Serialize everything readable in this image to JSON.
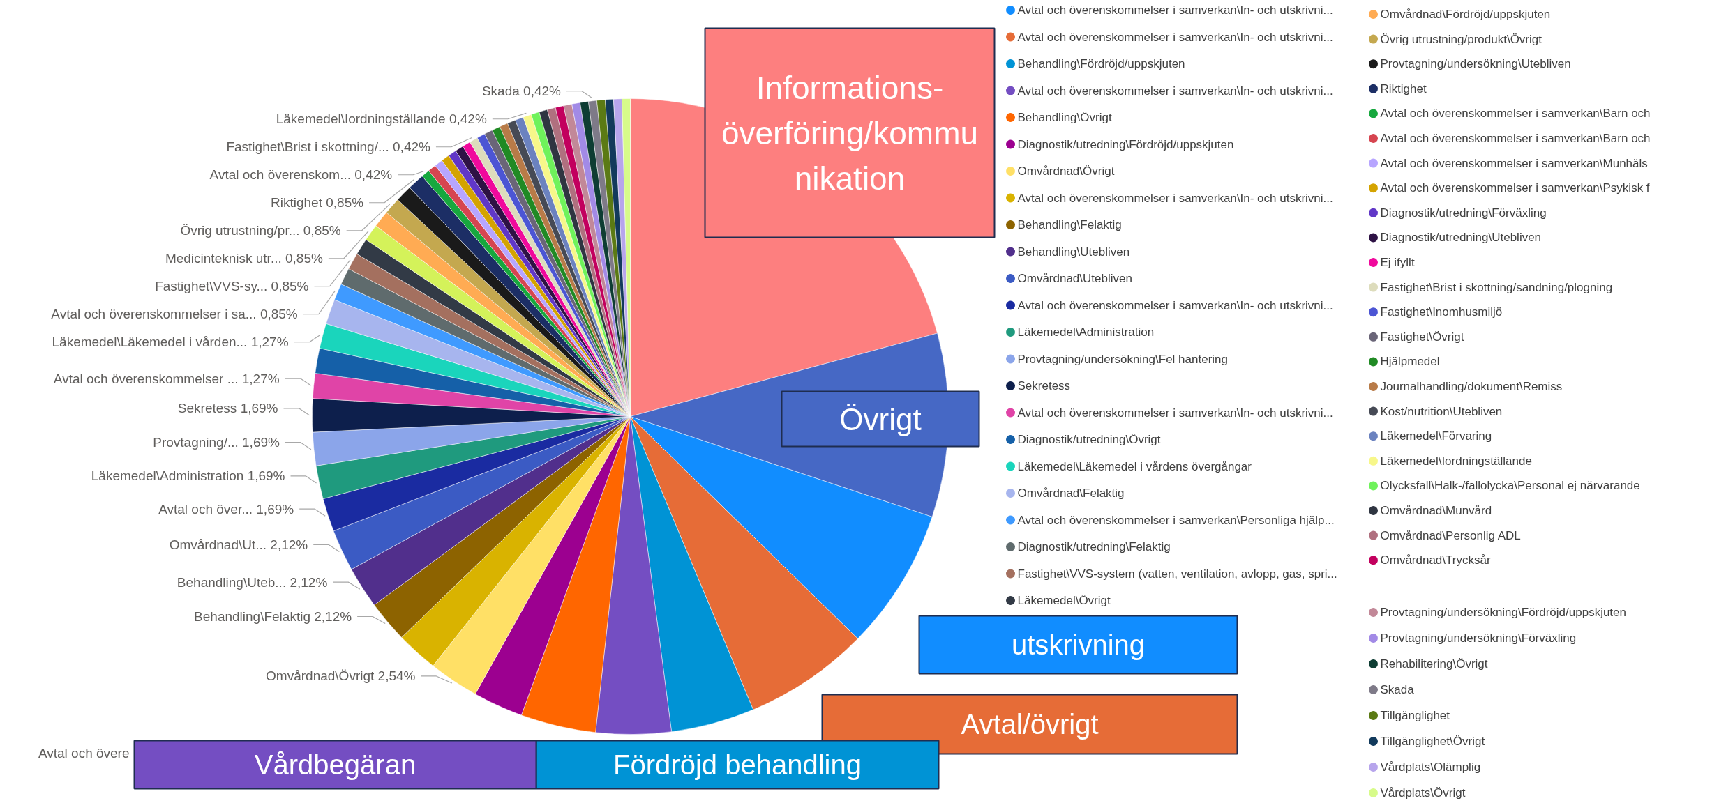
{
  "chart_data": {
    "type": "pie",
    "legend": "right",
    "categories": [
      null,
      null,
      "Avtal och överenskommelser i samverkan\\In- och utskrivni...",
      "Avtal och överenskommelser i samverkan\\In- och utskrivni...",
      "Behandling\\Fördröjd/uppskjuten",
      "Avtal och överenskommelser i samverkan\\In- och utskrivni...",
      "Behandling\\Övrigt",
      "Diagnostik/utredning\\Fördröjd/uppskjuten",
      "Omvårdnad\\Övrigt",
      "Avtal och överenskommelser i samverkan\\In- och utskrivni...",
      "Behandling\\Felaktig",
      "Behandling\\Utebliven",
      "Omvårdnad\\Utebliven",
      "Avtal och överenskommelser i samverkan\\In- och utskrivni...",
      "Läkemedel\\Administration",
      "Provtagning/undersökning\\Fel hantering",
      "Sekretess",
      "Avtal och överenskommelser i samverkan\\In- och utskrivni...",
      "Diagnostik/utredning\\Övrigt",
      "Läkemedel\\Läkemedel i vårdens övergångar",
      "Omvårdnad\\Felaktig",
      "Avtal och överenskommelser i samverkan\\Personliga hjälp...",
      "Diagnostik/utredning\\Felaktig",
      "Fastighet\\VVS-system (vatten, ventilation, avlopp, gas, spri...",
      "Läkemedel\\Övrigt",
      null,
      "Omvårdnad\\Fördröjd/uppskjuten",
      "Övrig utrustning/produkt\\Övrigt",
      "Provtagning/undersökning\\Utebliven",
      "Riktighet",
      "Avtal och överenskommelser i samverkan\\Barn och",
      "Avtal och överenskommelser i samverkan\\Barn och",
      "Avtal och överenskommelser i samverkan\\Munhäls",
      "Avtal och överenskommelser i samverkan\\Psykisk f",
      "Diagnostik/utredning\\Förväxling",
      "Diagnostik/utredning\\Utebliven",
      "Ej ifyllt",
      "Fastighet\\Brist i skottning/sandning/plogning",
      "Fastighet\\Inomhusmiljö",
      "Fastighet\\Övrigt",
      "Hjälpmedel",
      "Journalhandling/dokument\\Remiss",
      "Kost/nutrition\\Utebliven",
      "Läkemedel\\Förvaring",
      "Läkemedel\\Iordningställande",
      "Olycksfall\\Halk-/fallolycka\\Personal ej närvarande",
      "Omvårdnad\\Munvård",
      "Omvårdnad\\Personlig ADL",
      "Omvårdnad\\Trycksår",
      "Provtagning/undersökning\\Fördröjd/uppskjuten",
      "Provtagning/undersökning\\Förväxling",
      "Rehabilitering\\Övrigt",
      "Skada",
      "Tillgänglighet",
      "Tillgänglighet\\Övrigt",
      "Vårdplats\\Olämplig",
      "Vårdplats\\Övrigt"
    ],
    "values": [
      20.76,
      9.32,
      7.2,
      6.36,
      4.24,
      3.81,
      3.81,
      2.54,
      2.54,
      2.12,
      2.12,
      2.12,
      2.12,
      1.69,
      1.69,
      1.69,
      1.69,
      1.27,
      1.27,
      1.27,
      1.27,
      0.85,
      0.85,
      0.85,
      0.85,
      0.85,
      0.85,
      0.85,
      0.85,
      0.85,
      0.42,
      0.42,
      0.42,
      0.42,
      0.42,
      0.42,
      0.42,
      0.42,
      0.42,
      0.42,
      0.42,
      0.42,
      0.42,
      0.42,
      0.42,
      0.42,
      0.42,
      0.42,
      0.42,
      0.42,
      0.42,
      0.42,
      0.42,
      0.42,
      0.42,
      0.42,
      0.42
    ],
    "colors": [
      "#fd7f7f",
      "#4668c5",
      "#118dff",
      "#e66c37",
      "#0093d5",
      "#744ec2",
      "#ff6600",
      "#9c0090",
      "#ffe066",
      "#d9b300",
      "#8d6300",
      "#512f8c",
      "#3b5bc4",
      "#1a2ba1",
      "#1f9a7e",
      "#8ba5ea",
      "#0d1f4c",
      "#e044a7",
      "#1560a8",
      "#1ad5bc",
      "#a7b5ee",
      "#3f9aff",
      "#5f6b6d",
      "#a4705f",
      "#323a46",
      "#d4f25a",
      "#ffab53",
      "#c4a84f",
      "#1a1a1a",
      "#1c2e65",
      "#17a83e",
      "#d64550",
      "#b7a5ff",
      "#d4a300",
      "#6137c7",
      "#2e1245",
      "#f0099c",
      "#dddcbc",
      "#4c55d4",
      "#6a6578",
      "#208a24",
      "#b87b48",
      "#464a55",
      "#6b82bf",
      "#f7f78a",
      "#6ff25b",
      "#2f3541",
      "#b0707f",
      "#c2005e",
      "#c28898",
      "#a28ae6",
      "#0e3d33",
      "#7e7a88",
      "#5b7a14",
      "#123a5c",
      "#b7a5ec",
      "#d7fb8a"
    ],
    "value_labels": [
      null,
      null,
      null,
      null,
      null,
      null,
      null,
      null,
      "Omvårdnad\\Övrigt 2,54%",
      null,
      "Behandling\\Felaktig 2,12%",
      "Behandling\\Uteb... 2,12%",
      "Omvårdnad\\Ut... 2,12%",
      "Avtal och över... 1,69%",
      "Läkemedel\\Administration 1,69%",
      "Provtagning/... 1,69%",
      "Sekretess 1,69%",
      "Avtal och överenskommelser ... 1,27%",
      null,
      "Läkemedel\\Läkemedel i vården... 1,27%",
      null,
      "Avtal och överenskommelser i sa... 0,85%",
      null,
      "Fastighet\\VVS-sy... 0,85%",
      null,
      "Medicinteknisk utr... 0,85%",
      null,
      "Övrig utrustning/pr... 0,85%",
      null,
      "Riktighet 0,85%",
      "Avtal och överenskom... 0,42%",
      null,
      null,
      null,
      null,
      null,
      null,
      "Fastighet\\Brist i skottning/... 0,42%",
      null,
      null,
      null,
      null,
      null,
      null,
      "Läkemedel\\Iordningställande 0,42%",
      null,
      null,
      null,
      null,
      null,
      null,
      null,
      "Skada 0,42%",
      null,
      null,
      null,
      null
    ],
    "annotations": [
      "Informations-\növerföring/kommu\nnikation",
      "Övrigt",
      "utskrivning",
      "Avtal/övrigt",
      "Fördröjd behandling",
      "Vårdbegäran",
      "Avtal och övere"
    ]
  }
}
